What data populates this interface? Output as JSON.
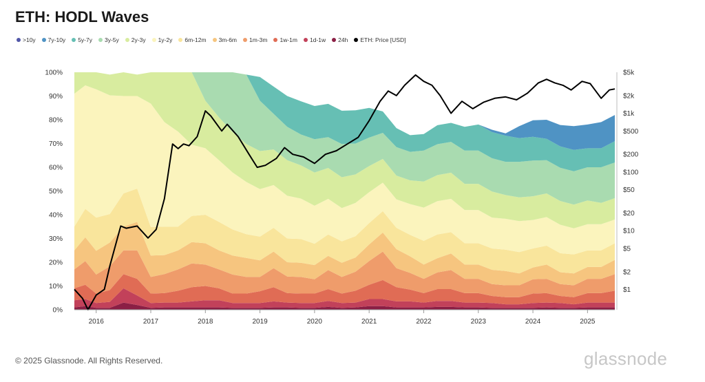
{
  "title": "ETH: HODL Waves",
  "footer": "© 2025 Glassnode. All Rights Reserved.",
  "brand": "glassnode",
  "watermark": "glassnode",
  "chart_data": {
    "type": "area",
    "title": "ETH: HODL Waves",
    "stacked": true,
    "legend_position": "top-left",
    "x": [
      2015.6,
      2015.8,
      2016.0,
      2016.25,
      2016.5,
      2016.75,
      2017.0,
      2017.25,
      2017.5,
      2017.75,
      2018.0,
      2018.25,
      2018.5,
      2018.75,
      2019.0,
      2019.25,
      2019.5,
      2019.75,
      2020.0,
      2020.25,
      2020.5,
      2020.75,
      2021.0,
      2021.25,
      2021.5,
      2021.75,
      2022.0,
      2022.25,
      2022.5,
      2022.75,
      2023.0,
      2023.25,
      2023.5,
      2023.75,
      2024.0,
      2024.25,
      2024.5,
      2024.75,
      2025.0,
      2025.25,
      2025.5
    ],
    "x_ticks": [
      "2016",
      "2017",
      "2018",
      "2019",
      "2020",
      "2021",
      "2022",
      "2023",
      "2024",
      "2025"
    ],
    "x_tick_values": [
      2016,
      2017,
      2018,
      2019,
      2020,
      2021,
      2022,
      2023,
      2024,
      2025
    ],
    "y_ticks": [
      "0%",
      "10%",
      "20%",
      "30%",
      "40%",
      "50%",
      "60%",
      "70%",
      "80%",
      "90%",
      "100%"
    ],
    "ylim": [
      0,
      100
    ],
    "y2_ticks": [
      "$1",
      "$2",
      "$5",
      "$10",
      "$20",
      "$50",
      "$100",
      "$200",
      "$500",
      "$1k",
      "$2k",
      "$5k"
    ],
    "y2_tick_values": [
      1,
      2,
      5,
      10,
      20,
      50,
      100,
      200,
      500,
      1000,
      2000,
      5000
    ],
    "y2_scale": "log",
    "y2lim": [
      0.45,
      5000
    ],
    "series": [
      {
        "name": "24h",
        "color": "#8b1f45",
        "values": [
          1,
          1.5,
          0.8,
          0.8,
          3,
          2,
          0.8,
          1,
          1,
          1,
          1,
          1,
          0.8,
          0.8,
          0.8,
          1,
          1,
          0.8,
          0.8,
          1.2,
          0.8,
          1,
          1.5,
          1.5,
          1,
          1,
          1,
          1.2,
          1.2,
          1,
          1,
          0.8,
          0.8,
          0.8,
          0.8,
          1,
          0.8,
          0.8,
          1,
          1,
          1
        ]
      },
      {
        "name": "1d-1w",
        "color": "#c2415a",
        "values": [
          3,
          3,
          2,
          2.5,
          6,
          4,
          2,
          2,
          2,
          2.5,
          3,
          3,
          2,
          2,
          2,
          2.5,
          2,
          2,
          2,
          2.5,
          2,
          2,
          3,
          3,
          2.5,
          2.5,
          2,
          2.5,
          2.5,
          2,
          2,
          2,
          1.5,
          1.5,
          2,
          2,
          2,
          1.5,
          2,
          2,
          2
        ]
      },
      {
        "name": "1w-1m",
        "color": "#e06c55",
        "values": [
          5,
          6,
          4,
          5,
          6,
          7,
          4,
          4,
          5,
          6,
          6,
          5,
          4,
          4,
          5,
          6,
          4,
          4,
          4,
          5,
          4,
          5,
          6,
          8,
          6,
          5,
          4,
          5,
          5,
          4,
          4,
          3,
          3,
          3,
          4,
          4,
          3,
          3,
          4,
          4,
          5
        ]
      },
      {
        "name": "1m-3m",
        "color": "#ef9c6b",
        "values": [
          8,
          10,
          8,
          10,
          10,
          12,
          7,
          8,
          9,
          10,
          9,
          8,
          8,
          7,
          6,
          8,
          7,
          7,
          6,
          8,
          7,
          8,
          10,
          12,
          8,
          7,
          6,
          7,
          8,
          6,
          6,
          5,
          5,
          5,
          6,
          6,
          5,
          5,
          6,
          6,
          7
        ]
      },
      {
        "name": "3m-6m",
        "color": "#f6c57f",
        "values": [
          8,
          10,
          10,
          10,
          10,
          12,
          9,
          8,
          8,
          9,
          9,
          8,
          8,
          8,
          7,
          7,
          6,
          6,
          6,
          6,
          6,
          6,
          7,
          8,
          8,
          7,
          6,
          6,
          7,
          6,
          6,
          6,
          6,
          5,
          5,
          6,
          5,
          5,
          5,
          5,
          6
        ]
      },
      {
        "name": "6m-12m",
        "color": "#f9e59c",
        "values": [
          10,
          12,
          14,
          12,
          14,
          14,
          12,
          12,
          10,
          11,
          12,
          12,
          11,
          10,
          10,
          10,
          10,
          10,
          9,
          9,
          9,
          9,
          9,
          9,
          9,
          9,
          10,
          10,
          9,
          9,
          9,
          9,
          9,
          9,
          8,
          8,
          8,
          8,
          7,
          7,
          7
        ]
      },
      {
        "name": "1y-2y",
        "color": "#fbf4bd",
        "values": [
          56,
          52,
          54,
          50,
          41,
          39,
          52,
          44,
          40,
          30,
          28,
          26,
          24,
          22,
          20,
          18,
          18,
          17,
          16,
          15,
          14,
          14,
          13,
          12,
          12,
          13,
          14,
          14,
          14,
          14,
          14,
          13,
          13,
          13,
          12,
          12,
          12,
          11,
          11,
          11,
          10
        ]
      },
      {
        "name": "2y-3y",
        "color": "#d8ec9f",
        "values": [
          9,
          5.5,
          7.2,
          8.7,
          10,
          9,
          13.2,
          21,
          25,
          30.5,
          20,
          18,
          17,
          16,
          16,
          15,
          15,
          14,
          14,
          13,
          13,
          12,
          11,
          10,
          10,
          10,
          11,
          11,
          11,
          11,
          11,
          11,
          10,
          10,
          10,
          10,
          10,
          10,
          10,
          9,
          9
        ]
      },
      {
        "name": "3y-5y",
        "color": "#a9dbb0",
        "values": [
          0,
          0,
          0,
          0,
          0,
          0,
          0,
          0,
          0,
          0,
          12,
          19,
          25.2,
          29.2,
          21.2,
          15,
          14,
          13,
          14,
          13,
          14,
          13,
          12,
          11,
          12,
          12,
          13,
          13,
          13,
          14,
          14,
          14,
          14,
          15,
          15,
          14,
          14,
          14,
          14,
          15,
          15
        ]
      },
      {
        "name": "5y-7y",
        "color": "#66bfb4",
        "values": [
          0,
          0,
          0,
          0,
          0,
          0,
          0,
          0,
          0,
          0,
          0,
          0,
          0,
          0,
          10,
          11.5,
          13,
          14,
          14,
          14,
          14,
          14,
          12.5,
          9,
          8,
          7,
          7,
          8,
          8,
          10,
          11,
          11,
          11,
          10,
          10,
          9,
          9,
          9,
          8,
          8,
          9
        ]
      },
      {
        "name": "7y-10y",
        "color": "#4f93c4",
        "values": [
          0,
          0,
          0,
          0,
          0,
          0,
          0,
          0,
          0,
          0,
          0,
          0,
          0,
          0,
          0,
          0,
          0,
          0,
          0,
          0,
          0,
          0,
          0,
          0,
          0,
          0,
          0,
          0,
          0,
          0,
          0,
          1,
          1,
          5,
          7,
          8,
          9,
          10,
          10,
          11,
          11
        ]
      },
      {
        "name": ">10y",
        "color": "#5157a8",
        "values": [
          0,
          0,
          0,
          0,
          0,
          0,
          0,
          0,
          0,
          0,
          0,
          0,
          0,
          0,
          0,
          0,
          0,
          0,
          0,
          0,
          0,
          0,
          0,
          0,
          0,
          0,
          0,
          0,
          0,
          0,
          0,
          0,
          0,
          0,
          0,
          0,
          0,
          0,
          0,
          0,
          0
        ]
      }
    ],
    "price_series": {
      "name": "ETH: Price [USD]",
      "color": "#000000",
      "x": [
        2015.6,
        2015.75,
        2015.85,
        2016.0,
        2016.15,
        2016.25,
        2016.45,
        2016.55,
        2016.75,
        2016.95,
        2017.1,
        2017.25,
        2017.4,
        2017.5,
        2017.6,
        2017.7,
        2017.85,
        2018.0,
        2018.1,
        2018.3,
        2018.4,
        2018.6,
        2018.8,
        2018.95,
        2019.1,
        2019.3,
        2019.45,
        2019.6,
        2019.8,
        2020.0,
        2020.2,
        2020.4,
        2020.6,
        2020.8,
        2021.0,
        2021.2,
        2021.35,
        2021.5,
        2021.65,
        2021.85,
        2022.0,
        2022.15,
        2022.3,
        2022.5,
        2022.7,
        2022.9,
        2023.1,
        2023.3,
        2023.5,
        2023.7,
        2023.9,
        2024.1,
        2024.25,
        2024.4,
        2024.55,
        2024.7,
        2024.9,
        2025.05,
        2025.25,
        2025.4,
        2025.5
      ],
      "values": [
        1.0,
        0.7,
        0.45,
        0.8,
        1.0,
        2.5,
        12,
        11,
        12,
        7.5,
        10.5,
        35,
        300,
        250,
        300,
        280,
        400,
        1100,
        900,
        500,
        650,
        400,
        200,
        120,
        130,
        170,
        260,
        200,
        180,
        140,
        200,
        230,
        300,
        390,
        750,
        1600,
        2400,
        2000,
        3000,
        4500,
        3500,
        3000,
        2000,
        1000,
        1600,
        1200,
        1550,
        1800,
        1900,
        1700,
        2200,
        3300,
        3800,
        3300,
        3000,
        2500,
        3500,
        3200,
        1800,
        2500,
        2600
      ]
    }
  },
  "legend": [
    {
      "label": ">10y",
      "color": "#5157a8"
    },
    {
      "label": "7y-10y",
      "color": "#4f93c4"
    },
    {
      "label": "5y-7y",
      "color": "#66bfb4"
    },
    {
      "label": "3y-5y",
      "color": "#a9dbb0"
    },
    {
      "label": "2y-3y",
      "color": "#d8ec9f"
    },
    {
      "label": "1y-2y",
      "color": "#fbf4bd"
    },
    {
      "label": "6m-12m",
      "color": "#f9e59c"
    },
    {
      "label": "3m-6m",
      "color": "#f6c57f"
    },
    {
      "label": "1m-3m",
      "color": "#ef9c6b"
    },
    {
      "label": "1w-1m",
      "color": "#e06c55"
    },
    {
      "label": "1d-1w",
      "color": "#c2415a"
    },
    {
      "label": "24h",
      "color": "#8b1f45"
    },
    {
      "label": "ETH: Price [USD]",
      "color": "#000000"
    }
  ]
}
